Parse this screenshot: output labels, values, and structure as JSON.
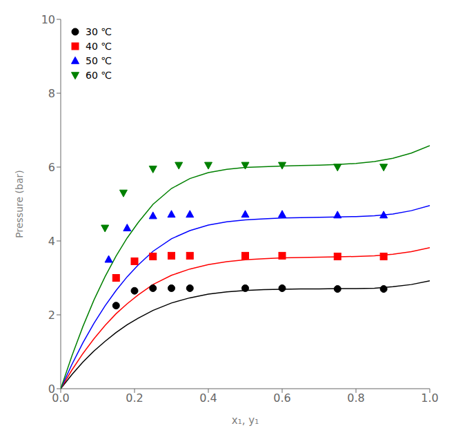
{
  "chart_data": {
    "type": "scatter",
    "title": "",
    "xlabel": "x₁, y₁",
    "ylabel": "Pressure (bar)",
    "xlim": [
      0.0,
      1.0
    ],
    "ylim": [
      0.0,
      10.0
    ],
    "xticks": [
      {
        "value": 0.0,
        "label": "0.0"
      },
      0.2,
      0.4,
      0.6,
      0.8,
      {
        "value": 1.0,
        "label": "1.0"
      }
    ],
    "yticks": [
      0,
      2,
      4,
      6,
      8,
      10
    ],
    "grid": false,
    "legend": "upper left",
    "series": [
      {
        "name": "30 ℃",
        "color": "black",
        "marker": "circle",
        "x": [
          0.15,
          0.2,
          0.25,
          0.3,
          0.35,
          0.5,
          0.6,
          0.75,
          0.875
        ],
        "values": [
          2.25,
          2.65,
          2.72,
          2.72,
          2.72,
          2.72,
          2.72,
          2.7,
          2.7
        ],
        "curve_x": [
          0.0,
          0.03,
          0.06,
          0.09,
          0.12,
          0.15,
          0.18,
          0.21,
          0.25,
          0.3,
          0.35,
          0.4,
          0.45,
          0.5,
          0.55,
          0.6,
          0.65,
          0.7,
          0.75,
          0.8,
          0.85,
          0.9,
          0.95,
          1.0
        ],
        "curve_values": [
          0.0,
          0.38,
          0.72,
          1.02,
          1.28,
          1.52,
          1.73,
          1.91,
          2.12,
          2.32,
          2.46,
          2.56,
          2.62,
          2.66,
          2.68,
          2.69,
          2.7,
          2.7,
          2.71,
          2.71,
          2.72,
          2.76,
          2.82,
          2.92
        ]
      },
      {
        "name": "40 ℃",
        "color": "red",
        "marker": "square",
        "x": [
          0.15,
          0.2,
          0.25,
          0.3,
          0.35,
          0.5,
          0.6,
          0.75,
          0.875
        ],
        "values": [
          3.0,
          3.45,
          3.58,
          3.6,
          3.6,
          3.6,
          3.6,
          3.58,
          3.58
        ],
        "curve_x": [
          0.0,
          0.03,
          0.06,
          0.09,
          0.12,
          0.15,
          0.18,
          0.21,
          0.25,
          0.3,
          0.35,
          0.4,
          0.45,
          0.5,
          0.55,
          0.6,
          0.65,
          0.7,
          0.75,
          0.8,
          0.85,
          0.9,
          0.95,
          1.0
        ],
        "curve_values": [
          0.0,
          0.5,
          0.95,
          1.35,
          1.71,
          2.03,
          2.3,
          2.54,
          2.82,
          3.07,
          3.24,
          3.36,
          3.44,
          3.49,
          3.52,
          3.54,
          3.55,
          3.56,
          3.57,
          3.58,
          3.6,
          3.64,
          3.71,
          3.82
        ]
      },
      {
        "name": "50 ℃",
        "color": "blue",
        "marker": "triangle-up",
        "x": [
          0.13,
          0.18,
          0.25,
          0.3,
          0.35,
          0.5,
          0.6,
          0.75,
          0.875
        ],
        "values": [
          3.5,
          4.35,
          4.68,
          4.72,
          4.72,
          4.72,
          4.72,
          4.7,
          4.7
        ],
        "curve_x": [
          0.0,
          0.03,
          0.06,
          0.09,
          0.12,
          0.15,
          0.18,
          0.21,
          0.25,
          0.3,
          0.35,
          0.4,
          0.45,
          0.5,
          0.55,
          0.6,
          0.65,
          0.7,
          0.75,
          0.8,
          0.85,
          0.9,
          0.95,
          1.0
        ],
        "curve_values": [
          0.0,
          0.65,
          1.24,
          1.77,
          2.24,
          2.66,
          3.03,
          3.35,
          3.72,
          4.06,
          4.28,
          4.43,
          4.52,
          4.57,
          4.6,
          4.62,
          4.63,
          4.64,
          4.65,
          4.66,
          4.68,
          4.73,
          4.82,
          4.96
        ]
      },
      {
        "name": "60 ℃",
        "color": "green",
        "marker": "triangle-down",
        "x": [
          0.12,
          0.17,
          0.25,
          0.32,
          0.4,
          0.5,
          0.6,
          0.75,
          0.875
        ],
        "values": [
          4.35,
          5.3,
          5.95,
          6.05,
          6.05,
          6.05,
          6.05,
          6.0,
          6.0
        ],
        "curve_x": [
          0.0,
          0.03,
          0.06,
          0.09,
          0.12,
          0.15,
          0.18,
          0.21,
          0.25,
          0.3,
          0.35,
          0.4,
          0.45,
          0.5,
          0.55,
          0.6,
          0.65,
          0.7,
          0.75,
          0.8,
          0.85,
          0.9,
          0.95,
          1.0
        ],
        "curve_values": [
          0.0,
          0.88,
          1.68,
          2.4,
          3.03,
          3.59,
          4.08,
          4.5,
          4.99,
          5.42,
          5.69,
          5.85,
          5.94,
          5.99,
          6.01,
          6.03,
          6.04,
          6.05,
          6.07,
          6.1,
          6.15,
          6.24,
          6.38,
          6.58
        ]
      }
    ]
  }
}
